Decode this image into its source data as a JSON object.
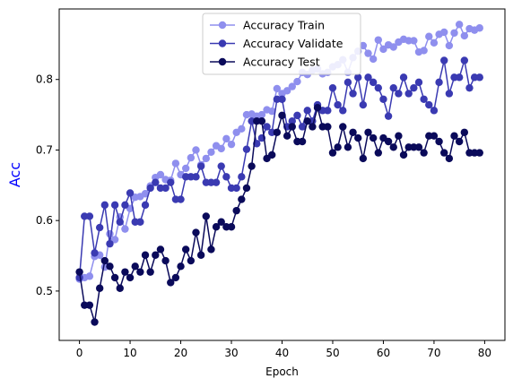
{
  "chart_data": {
    "type": "line",
    "title": "",
    "xlabel": "Epoch",
    "ylabel": "Acc",
    "ylabel_color": "#0000ff",
    "xlim": [
      -4,
      84
    ],
    "ylim": [
      0.43,
      0.9
    ],
    "xticks": [
      0,
      10,
      20,
      30,
      40,
      50,
      60,
      70,
      80
    ],
    "yticks": [
      0.5,
      0.6,
      0.7,
      0.8
    ],
    "xtick_labels": [
      "0",
      "10",
      "20",
      "30",
      "40",
      "50",
      "60",
      "70",
      "80"
    ],
    "ytick_labels": [
      "0.5",
      "0.6",
      "0.7",
      "0.8"
    ],
    "grid": false,
    "legend_position": "upper-center",
    "x": [
      0,
      1,
      2,
      3,
      4,
      5,
      6,
      7,
      8,
      9,
      10,
      11,
      12,
      13,
      14,
      15,
      16,
      17,
      18,
      19,
      20,
      21,
      22,
      23,
      24,
      25,
      26,
      27,
      28,
      29,
      30,
      31,
      32,
      33,
      34,
      35,
      36,
      37,
      38,
      39,
      40,
      41,
      42,
      43,
      44,
      45,
      46,
      47,
      48,
      49,
      50,
      51,
      52,
      53,
      54,
      55,
      56,
      57,
      58,
      59,
      60,
      61,
      62,
      63,
      64,
      65,
      66,
      67,
      68,
      69,
      70,
      71,
      72,
      73,
      74,
      75,
      76,
      77,
      78,
      79
    ],
    "series": [
      {
        "name": "Accuracy Train",
        "color": "#8f8fee",
        "values": [
          0.517,
          0.519,
          0.521,
          0.549,
          0.551,
          0.534,
          0.581,
          0.573,
          0.605,
          0.588,
          0.617,
          0.633,
          0.634,
          0.638,
          0.649,
          0.661,
          0.665,
          0.658,
          0.657,
          0.681,
          0.665,
          0.674,
          0.689,
          0.7,
          0.679,
          0.688,
          0.697,
          0.706,
          0.702,
          0.716,
          0.708,
          0.725,
          0.73,
          0.75,
          0.751,
          0.748,
          0.75,
          0.757,
          0.755,
          0.787,
          0.78,
          0.784,
          0.79,
          0.797,
          0.81,
          0.807,
          0.813,
          0.815,
          0.808,
          0.81,
          0.818,
          0.821,
          0.828,
          0.81,
          0.831,
          0.84,
          0.848,
          0.837,
          0.829,
          0.856,
          0.843,
          0.849,
          0.846,
          0.853,
          0.857,
          0.855,
          0.855,
          0.839,
          0.841,
          0.861,
          0.852,
          0.864,
          0.867,
          0.848,
          0.866,
          0.878,
          0.862,
          0.872,
          0.87,
          0.873
        ]
      },
      {
        "name": "Accuracy Validate",
        "color": "#3a3ab2",
        "values": [
          0.519,
          0.606,
          0.606,
          0.554,
          0.59,
          0.622,
          0.567,
          0.622,
          0.598,
          0.622,
          0.639,
          0.598,
          0.598,
          0.622,
          0.646,
          0.654,
          0.646,
          0.646,
          0.654,
          0.63,
          0.63,
          0.662,
          0.662,
          0.662,
          0.677,
          0.654,
          0.654,
          0.654,
          0.677,
          0.662,
          0.646,
          0.646,
          0.662,
          0.701,
          0.741,
          0.709,
          0.717,
          0.733,
          0.725,
          0.772,
          0.772,
          0.733,
          0.741,
          0.749,
          0.733,
          0.756,
          0.741,
          0.764,
          0.756,
          0.756,
          0.788,
          0.764,
          0.756,
          0.796,
          0.78,
          0.803,
          0.764,
          0.803,
          0.796,
          0.788,
          0.772,
          0.748,
          0.788,
          0.78,
          0.803,
          0.78,
          0.788,
          0.796,
          0.772,
          0.764,
          0.756,
          0.796,
          0.827,
          0.78,
          0.803,
          0.803,
          0.827,
          0.788,
          0.803,
          0.803
        ]
      },
      {
        "name": "Accuracy Test",
        "color": "#0a0a5a",
        "values": [
          0.527,
          0.48,
          0.48,
          0.456,
          0.504,
          0.543,
          0.535,
          0.519,
          0.504,
          0.527,
          0.519,
          0.535,
          0.527,
          0.551,
          0.527,
          0.551,
          0.559,
          0.543,
          0.512,
          0.519,
          0.535,
          0.559,
          0.543,
          0.583,
          0.551,
          0.606,
          0.559,
          0.591,
          0.598,
          0.591,
          0.591,
          0.614,
          0.63,
          0.646,
          0.677,
          0.741,
          0.741,
          0.688,
          0.693,
          0.725,
          0.749,
          0.72,
          0.733,
          0.712,
          0.712,
          0.741,
          0.733,
          0.76,
          0.733,
          0.733,
          0.696,
          0.704,
          0.733,
          0.704,
          0.725,
          0.717,
          0.688,
          0.725,
          0.717,
          0.696,
          0.717,
          0.712,
          0.704,
          0.72,
          0.693,
          0.704,
          0.704,
          0.704,
          0.696,
          0.72,
          0.72,
          0.712,
          0.696,
          0.688,
          0.72,
          0.712,
          0.725,
          0.696,
          0.696,
          0.696
        ]
      }
    ]
  }
}
